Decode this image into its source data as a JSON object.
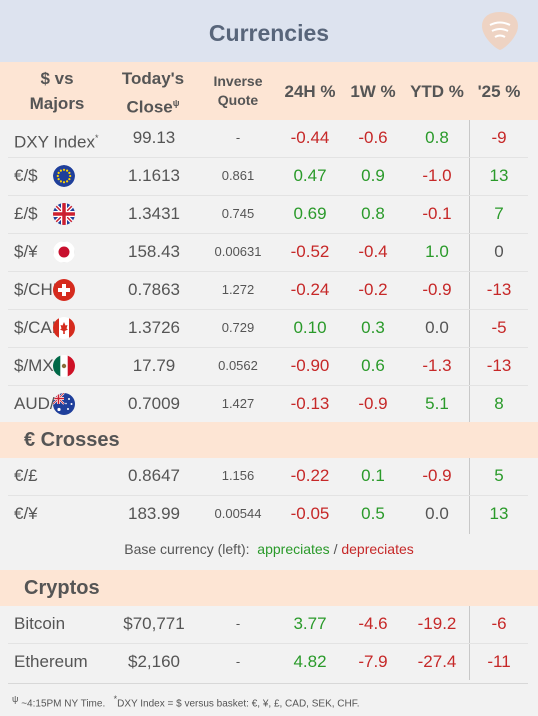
{
  "title": "Currencies",
  "header": {
    "col1_a": "$ vs",
    "col1_b": "Majors",
    "col2_a": "Today's",
    "col2_b": "Close",
    "col2_sup": "ψ",
    "col3_a": "Inverse",
    "col3_b": "Quote",
    "col4": "24H %",
    "col5": "1W %",
    "col6": "YTD %",
    "col7": "'25 %"
  },
  "majors": [
    {
      "name": "DXY Index",
      "sup": "*",
      "flag": "",
      "close": "99.13",
      "inv": "-",
      "h24": "-0.44",
      "w1": "-0.6",
      "ytd": "0.8",
      "y25": "-9"
    },
    {
      "name": "€/$",
      "flag": "eu",
      "close": "1.1613",
      "inv": "0.861",
      "h24": "0.47",
      "w1": "0.9",
      "ytd": "-1.0",
      "y25": "13"
    },
    {
      "name": "£/$",
      "flag": "uk",
      "close": "1.3431",
      "inv": "0.745",
      "h24": "0.69",
      "w1": "0.8",
      "ytd": "-0.1",
      "y25": "7"
    },
    {
      "name": "$/¥",
      "flag": "jp",
      "close": "158.43",
      "inv": "0.00631",
      "h24": "-0.52",
      "w1": "-0.4",
      "ytd": "1.0",
      "y25": "0"
    },
    {
      "name": "$/CHF",
      "flag": "ch",
      "close": "0.7863",
      "inv": "1.272",
      "h24": "-0.24",
      "w1": "-0.2",
      "ytd": "-0.9",
      "y25": "-13"
    },
    {
      "name": "$/CAD",
      "flag": "ca",
      "close": "1.3726",
      "inv": "0.729",
      "h24": "0.10",
      "w1": "0.3",
      "ytd": "0.0",
      "y25": "-5"
    },
    {
      "name": "$/MXN",
      "flag": "mx",
      "close": "17.79",
      "inv": "0.0562",
      "h24": "-0.90",
      "w1": "0.6",
      "ytd": "-1.3",
      "y25": "-13"
    },
    {
      "name": "AUD/$",
      "flag": "au",
      "close": "0.7009",
      "inv": "1.427",
      "h24": "-0.13",
      "w1": "-0.9",
      "ytd": "5.1",
      "y25": "8"
    }
  ],
  "crosses_title": "€ Crosses",
  "crosses": [
    {
      "name": "€/£",
      "close": "0.8647",
      "inv": "1.156",
      "h24": "-0.22",
      "w1": "0.1",
      "ytd": "-0.9",
      "y25": "5"
    },
    {
      "name": "€/¥",
      "close": "183.99",
      "inv": "0.00544",
      "h24": "-0.05",
      "w1": "0.5",
      "ytd": "0.0",
      "y25": "13"
    }
  ],
  "legend": {
    "prefix": "Base currency (left):",
    "appreciates": "appreciates",
    "slash": "/",
    "depreciates": "depreciates"
  },
  "cryptos_title": "Cryptos",
  "cryptos": [
    {
      "name": "Bitcoin",
      "close": "$70,771",
      "inv": "-",
      "h24": "3.77",
      "w1": "-4.6",
      "ytd": "-19.2",
      "y25": "-6"
    },
    {
      "name": "Ethereum",
      "close": "$2,160",
      "inv": "-",
      "h24": "4.82",
      "w1": "-7.9",
      "ytd": "-27.4",
      "y25": "-11"
    }
  ],
  "footnote": {
    "sup1": "ψ",
    "text1": "~4:15PM NY Time.",
    "sup2": "*",
    "text2": "DXY Index = $ versus basket: €, ¥, £, CAD, SEK, CHF."
  },
  "colors": {
    "positive": "#2a9a2a",
    "negative": "#c62828",
    "header_bg": "#fde5d4",
    "title_bg": "#dde3ef"
  }
}
